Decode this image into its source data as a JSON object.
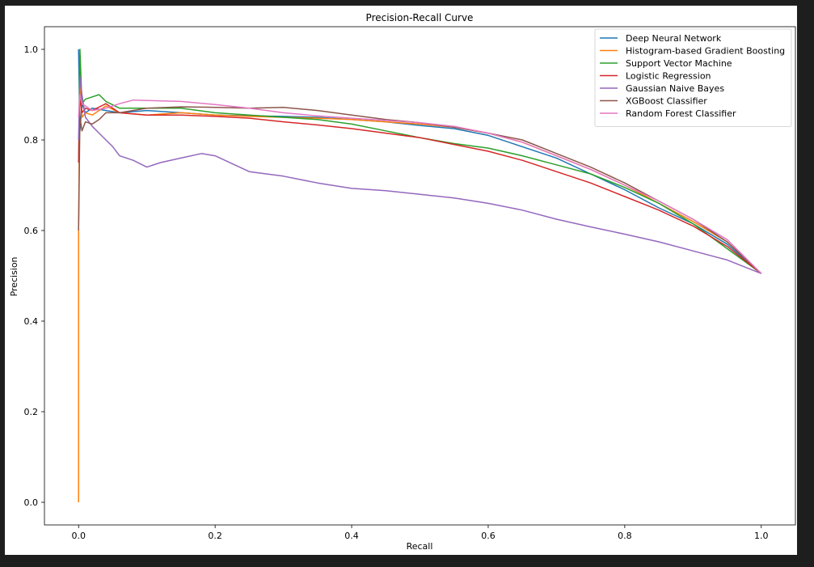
{
  "chart_data": {
    "type": "line",
    "title": "Precision-Recall Curve",
    "xlabel": "Recall",
    "ylabel": "Precision",
    "xlim": [
      -0.05,
      1.05
    ],
    "ylim": [
      -0.05,
      1.05
    ],
    "x_ticks": [
      0.0,
      0.2,
      0.4,
      0.6,
      0.8,
      1.0
    ],
    "y_ticks": [
      0.0,
      0.2,
      0.4,
      0.6,
      0.8,
      1.0
    ],
    "x_tick_labels": [
      "0.0",
      "0.2",
      "0.4",
      "0.6",
      "0.8",
      "1.0"
    ],
    "y_tick_labels": [
      "0.0",
      "0.2",
      "0.4",
      "0.6",
      "0.8",
      "1.0"
    ],
    "grid": false,
    "legend_position": "top-right",
    "series": [
      {
        "name": "Deep Neural Network",
        "color": "#1f77b4",
        "points": [
          [
            0.0,
            1.0
          ],
          [
            0.002,
            0.82
          ],
          [
            0.005,
            0.88
          ],
          [
            0.01,
            0.86
          ],
          [
            0.02,
            0.87
          ],
          [
            0.04,
            0.865
          ],
          [
            0.06,
            0.86
          ],
          [
            0.1,
            0.865
          ],
          [
            0.15,
            0.86
          ],
          [
            0.2,
            0.855
          ],
          [
            0.25,
            0.853
          ],
          [
            0.3,
            0.852
          ],
          [
            0.35,
            0.85
          ],
          [
            0.4,
            0.845
          ],
          [
            0.45,
            0.84
          ],
          [
            0.5,
            0.832
          ],
          [
            0.55,
            0.825
          ],
          [
            0.6,
            0.81
          ],
          [
            0.65,
            0.785
          ],
          [
            0.7,
            0.76
          ],
          [
            0.75,
            0.725
          ],
          [
            0.8,
            0.69
          ],
          [
            0.85,
            0.65
          ],
          [
            0.9,
            0.615
          ],
          [
            0.95,
            0.57
          ],
          [
            1.0,
            0.505
          ]
        ]
      },
      {
        "name": "Histogram-based Gradient Boosting",
        "color": "#ff7f0e",
        "points": [
          [
            0.0,
            0.0
          ],
          [
            0.0,
            0.6
          ],
          [
            0.002,
            0.95
          ],
          [
            0.005,
            0.85
          ],
          [
            0.01,
            0.86
          ],
          [
            0.02,
            0.855
          ],
          [
            0.04,
            0.875
          ],
          [
            0.06,
            0.86
          ],
          [
            0.1,
            0.855
          ],
          [
            0.15,
            0.86
          ],
          [
            0.2,
            0.855
          ],
          [
            0.25,
            0.852
          ],
          [
            0.3,
            0.85
          ],
          [
            0.35,
            0.848
          ],
          [
            0.4,
            0.845
          ],
          [
            0.45,
            0.84
          ],
          [
            0.5,
            0.835
          ],
          [
            0.55,
            0.828
          ],
          [
            0.6,
            0.815
          ],
          [
            0.65,
            0.795
          ],
          [
            0.7,
            0.765
          ],
          [
            0.75,
            0.735
          ],
          [
            0.8,
            0.7
          ],
          [
            0.85,
            0.66
          ],
          [
            0.9,
            0.62
          ],
          [
            0.95,
            0.575
          ],
          [
            1.0,
            0.505
          ]
        ]
      },
      {
        "name": "Support Vector Machine",
        "color": "#2ca02c",
        "points": [
          [
            0.0,
            0.75
          ],
          [
            0.002,
            1.0
          ],
          [
            0.005,
            0.88
          ],
          [
            0.01,
            0.89
          ],
          [
            0.02,
            0.895
          ],
          [
            0.03,
            0.9
          ],
          [
            0.04,
            0.885
          ],
          [
            0.06,
            0.87
          ],
          [
            0.1,
            0.87
          ],
          [
            0.15,
            0.87
          ],
          [
            0.2,
            0.86
          ],
          [
            0.25,
            0.855
          ],
          [
            0.3,
            0.85
          ],
          [
            0.35,
            0.845
          ],
          [
            0.4,
            0.835
          ],
          [
            0.45,
            0.82
          ],
          [
            0.5,
            0.805
          ],
          [
            0.55,
            0.792
          ],
          [
            0.6,
            0.782
          ],
          [
            0.65,
            0.765
          ],
          [
            0.7,
            0.745
          ],
          [
            0.75,
            0.725
          ],
          [
            0.8,
            0.695
          ],
          [
            0.85,
            0.66
          ],
          [
            0.9,
            0.615
          ],
          [
            0.95,
            0.56
          ],
          [
            1.0,
            0.505
          ]
        ]
      },
      {
        "name": "Logistic Regression",
        "color": "#d62728",
        "points": [
          [
            0.0,
            0.75
          ],
          [
            0.002,
            0.9
          ],
          [
            0.005,
            0.86
          ],
          [
            0.01,
            0.87
          ],
          [
            0.02,
            0.865
          ],
          [
            0.04,
            0.88
          ],
          [
            0.06,
            0.86
          ],
          [
            0.1,
            0.855
          ],
          [
            0.15,
            0.855
          ],
          [
            0.2,
            0.852
          ],
          [
            0.25,
            0.848
          ],
          [
            0.3,
            0.84
          ],
          [
            0.35,
            0.833
          ],
          [
            0.4,
            0.825
          ],
          [
            0.45,
            0.815
          ],
          [
            0.5,
            0.805
          ],
          [
            0.55,
            0.79
          ],
          [
            0.6,
            0.775
          ],
          [
            0.65,
            0.755
          ],
          [
            0.7,
            0.73
          ],
          [
            0.75,
            0.705
          ],
          [
            0.8,
            0.675
          ],
          [
            0.85,
            0.645
          ],
          [
            0.9,
            0.61
          ],
          [
            0.95,
            0.565
          ],
          [
            1.0,
            0.505
          ]
        ]
      },
      {
        "name": "Gaussian Naive Bayes",
        "color": "#9467bd",
        "points": [
          [
            0.0,
            0.8
          ],
          [
            0.002,
            0.94
          ],
          [
            0.005,
            0.9
          ],
          [
            0.01,
            0.85
          ],
          [
            0.02,
            0.83
          ],
          [
            0.03,
            0.815
          ],
          [
            0.04,
            0.8
          ],
          [
            0.05,
            0.785
          ],
          [
            0.06,
            0.765
          ],
          [
            0.08,
            0.755
          ],
          [
            0.1,
            0.74
          ],
          [
            0.12,
            0.75
          ],
          [
            0.15,
            0.76
          ],
          [
            0.18,
            0.77
          ],
          [
            0.2,
            0.765
          ],
          [
            0.25,
            0.73
          ],
          [
            0.3,
            0.72
          ],
          [
            0.35,
            0.705
          ],
          [
            0.4,
            0.693
          ],
          [
            0.45,
            0.688
          ],
          [
            0.5,
            0.68
          ],
          [
            0.55,
            0.672
          ],
          [
            0.6,
            0.66
          ],
          [
            0.65,
            0.645
          ],
          [
            0.7,
            0.625
          ],
          [
            0.75,
            0.608
          ],
          [
            0.8,
            0.592
          ],
          [
            0.85,
            0.575
          ],
          [
            0.9,
            0.555
          ],
          [
            0.95,
            0.535
          ],
          [
            1.0,
            0.505
          ]
        ]
      },
      {
        "name": "XGBoost Classifier",
        "color": "#8c564b",
        "points": [
          [
            0.0,
            0.6
          ],
          [
            0.002,
            0.85
          ],
          [
            0.005,
            0.82
          ],
          [
            0.01,
            0.84
          ],
          [
            0.02,
            0.835
          ],
          [
            0.03,
            0.845
          ],
          [
            0.04,
            0.86
          ],
          [
            0.06,
            0.86
          ],
          [
            0.1,
            0.87
          ],
          [
            0.15,
            0.873
          ],
          [
            0.2,
            0.872
          ],
          [
            0.25,
            0.87
          ],
          [
            0.3,
            0.872
          ],
          [
            0.35,
            0.865
          ],
          [
            0.4,
            0.855
          ],
          [
            0.45,
            0.845
          ],
          [
            0.5,
            0.838
          ],
          [
            0.55,
            0.828
          ],
          [
            0.6,
            0.815
          ],
          [
            0.65,
            0.8
          ],
          [
            0.7,
            0.77
          ],
          [
            0.75,
            0.74
          ],
          [
            0.8,
            0.705
          ],
          [
            0.85,
            0.665
          ],
          [
            0.9,
            0.625
          ],
          [
            0.95,
            0.575
          ],
          [
            1.0,
            0.505
          ]
        ]
      },
      {
        "name": "Random Forest Classifier",
        "color": "#e377c2",
        "points": [
          [
            0.0,
            0.85
          ],
          [
            0.002,
            0.9
          ],
          [
            0.005,
            0.88
          ],
          [
            0.01,
            0.875
          ],
          [
            0.02,
            0.865
          ],
          [
            0.04,
            0.87
          ],
          [
            0.06,
            0.88
          ],
          [
            0.08,
            0.888
          ],
          [
            0.1,
            0.887
          ],
          [
            0.15,
            0.885
          ],
          [
            0.2,
            0.878
          ],
          [
            0.25,
            0.87
          ],
          [
            0.3,
            0.86
          ],
          [
            0.35,
            0.853
          ],
          [
            0.4,
            0.848
          ],
          [
            0.45,
            0.843
          ],
          [
            0.5,
            0.838
          ],
          [
            0.55,
            0.83
          ],
          [
            0.6,
            0.815
          ],
          [
            0.65,
            0.795
          ],
          [
            0.7,
            0.765
          ],
          [
            0.75,
            0.735
          ],
          [
            0.8,
            0.7
          ],
          [
            0.85,
            0.665
          ],
          [
            0.9,
            0.625
          ],
          [
            0.95,
            0.58
          ],
          [
            1.0,
            0.505
          ]
        ]
      }
    ]
  }
}
